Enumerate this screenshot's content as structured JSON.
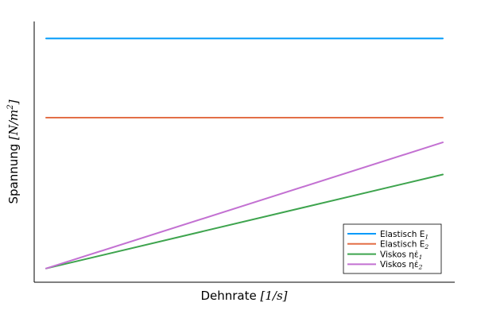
{
  "chart_data": {
    "type": "line",
    "xlabel_text": "Dehnrate",
    "xlabel_unit": "[1/s]",
    "ylabel_text": "Spannung",
    "ylabel_unit": "[N/m",
    "ylabel_unit_sup": "2",
    "ylabel_unit_close": "]",
    "x": [
      0,
      1
    ],
    "xlim": [
      0,
      1
    ],
    "ylim": [
      0,
      1
    ],
    "grid": false,
    "legend_position": "bottom-right",
    "series": [
      {
        "name": "Elastisch E",
        "name_sub": "1",
        "color": "#009AFA",
        "values": [
          0.96,
          0.96
        ]
      },
      {
        "name": "Elastisch E",
        "name_sub": "2",
        "color": "#E36F47",
        "values": [
          0.64,
          0.64
        ]
      },
      {
        "name": "Viskos ηε̇",
        "name_sub": "1",
        "color": "#3EA44E",
        "values": [
          0.03,
          0.41
        ]
      },
      {
        "name": "Viskos ηε̇",
        "name_sub": "2",
        "color": "#C371D2",
        "values": [
          0.03,
          0.54
        ]
      }
    ]
  }
}
